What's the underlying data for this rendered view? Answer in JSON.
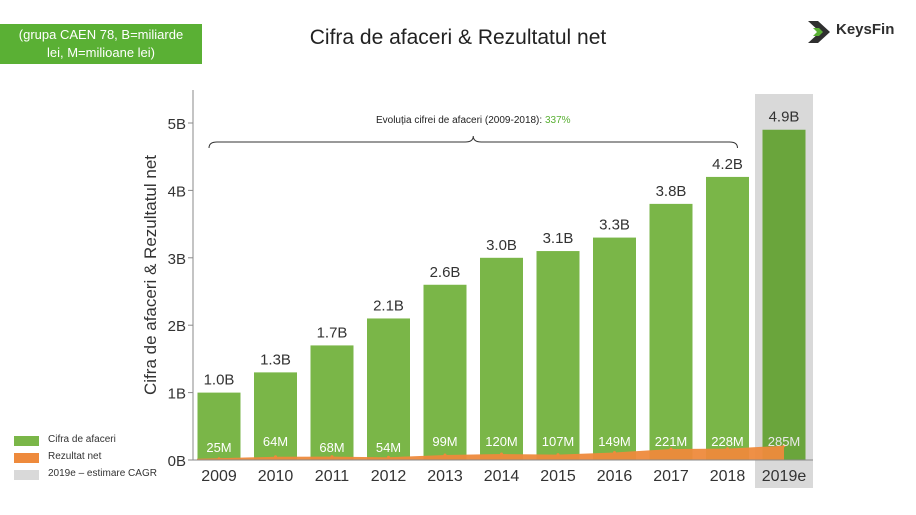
{
  "note": {
    "line1": "(grupa CAEN 78, B=miliarde",
    "line2": "lei, M=milioane lei)"
  },
  "title": "Cifra de afaceri & Rezultatul net",
  "logo": {
    "text": "KeysFin",
    "colors": {
      "dark": "#2f2f2f",
      "green": "#5ab034"
    }
  },
  "chart_data": {
    "type": "bar",
    "title": "Cifra de afaceri & Rezultatul net",
    "ylabel": "Cifra de afaceri & Rezultatul net",
    "categories": [
      "2009",
      "2010",
      "2011",
      "2012",
      "2013",
      "2014",
      "2015",
      "2016",
      "2017",
      "2018",
      "2019e"
    ],
    "yticks": [
      "0B",
      "1B",
      "2B",
      "3B",
      "4B",
      "5B"
    ],
    "ylim": [
      0,
      5.5
    ],
    "series": [
      {
        "name": "Cifra de afaceri",
        "unit": "B",
        "color": "#7ab648",
        "values": [
          1.0,
          1.3,
          1.7,
          2.1,
          2.6,
          3.0,
          3.1,
          3.3,
          3.8,
          4.2,
          4.9
        ],
        "labels": [
          "1.0B",
          "1.3B",
          "1.7B",
          "2.1B",
          "2.6B",
          "3.0B",
          "3.1B",
          "3.3B",
          "3.8B",
          "4.2B",
          "4.9B"
        ]
      },
      {
        "name": "Rezultat net",
        "unit": "M",
        "color": "#ee8a3c",
        "values": [
          25,
          64,
          68,
          54,
          99,
          120,
          107,
          149,
          221,
          228,
          285
        ],
        "labels": [
          "25M",
          "64M",
          "68M",
          "54M",
          "99M",
          "120M",
          "107M",
          "149M",
          "221M",
          "228M",
          "285M"
        ]
      }
    ],
    "estimate": {
      "category": "2019e",
      "label": "2019e – estimare CAGR",
      "shade_color": "#d9d9d9",
      "bar_color": "#6aa53c"
    },
    "annotation": {
      "text": "Evoluția cifrei de afaceri (2009-2018):",
      "value": "337%",
      "value_color": "#5ab034",
      "span": [
        "2009",
        "2018"
      ]
    },
    "legend": [
      {
        "label": "Cifra de afaceri",
        "color": "#7ab648"
      },
      {
        "label": "Rezultat net",
        "color": "#ee8a3c"
      },
      {
        "label": "2019e – estimare CAGR",
        "color": "#d9d9d9"
      }
    ]
  }
}
